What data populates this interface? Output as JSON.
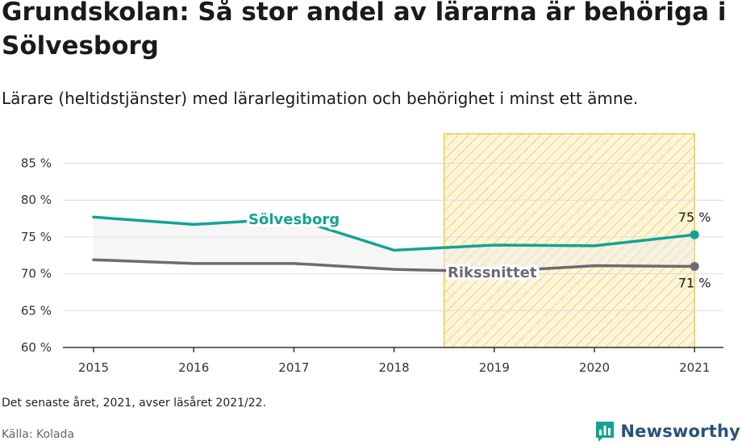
{
  "header": {
    "title": "Grundskolan: Så stor andel av lärarna är behöriga i Sölvesborg",
    "subtitle": "Lärare (heltidstjänster) med lärarlegitimation och behörighet i minst ett ämne."
  },
  "footer": {
    "note": "Det senaste året, 2021, avser läsåret 2021/22.",
    "source": "Källa: Kolada",
    "brand": "Newsworthy"
  },
  "icons": {
    "brand_logo": "newsworthy-logo-icon"
  },
  "colors": {
    "solvesborg": "#12a394",
    "riket": "#6d6b70",
    "highlight_stroke": "#f4c84a",
    "brand": "#29527a"
  },
  "chart_data": {
    "type": "line",
    "x": [
      "2015",
      "2016",
      "2017",
      "2018",
      "2019",
      "2020",
      "2021"
    ],
    "series": [
      {
        "name": "Sölvesborg",
        "values": [
          77.7,
          76.7,
          77.5,
          73.2,
          73.9,
          73.8,
          75.3
        ],
        "end_label": "75 %"
      },
      {
        "name": "Rikssnittet",
        "values": [
          71.9,
          71.4,
          71.4,
          70.6,
          70.3,
          71.1,
          71.0
        ],
        "end_label": "71 %"
      }
    ],
    "y_ticks": [
      "60 %",
      "65 %",
      "70 %",
      "75 %",
      "80 %",
      "85 %"
    ],
    "y_tick_values": [
      60,
      65,
      70,
      75,
      80,
      85
    ],
    "ylim": [
      60,
      89
    ],
    "highlight_range": [
      "2018.5",
      "2021"
    ],
    "grid": true,
    "legend": "inline"
  }
}
